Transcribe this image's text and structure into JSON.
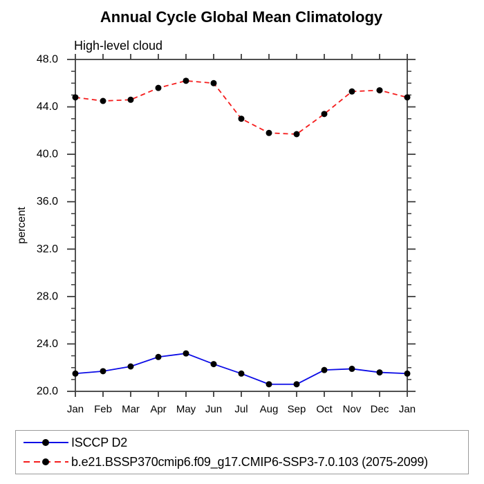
{
  "chart_data": {
    "type": "line",
    "title": "Annual Cycle Global Mean Climatology",
    "subtitle": "High-level cloud",
    "ylabel": "percent",
    "x_tick_labels": [
      "Jan",
      "Feb",
      "Mar",
      "Apr",
      "May",
      "Jun",
      "Jul",
      "Aug",
      "Sep",
      "Oct",
      "Nov",
      "Dec",
      "Jan"
    ],
    "ylim": [
      20.0,
      48.0
    ],
    "y_major_ticks": [
      20,
      24,
      28,
      32,
      36,
      40,
      44,
      48
    ],
    "y_major_tick_labels": [
      "20.0",
      "24.0",
      "28.0",
      "32.0",
      "36.0",
      "40.0",
      "44.0",
      "48.0"
    ],
    "y_minor_tick_step": 1,
    "grid": false,
    "legend_position": "bottom-left",
    "axis_color": "#3c3c3c",
    "series": [
      {
        "name": "ISCCP D2",
        "line_style": "solid",
        "line_color": "#0b0bец",
        "marker": "circle",
        "marker_color": "#000000",
        "values": [
          21.5,
          21.7,
          22.1,
          22.9,
          23.2,
          22.3,
          21.5,
          20.6,
          20.6,
          21.8,
          21.9,
          21.6,
          21.5
        ]
      },
      {
        "name": "b.e21.BSSP370cmip6.f09_g17.CMIP6-SSP3-7.0.103 (2075-2099)",
        "line_style": "dashed",
        "line_color": "#f51c1c",
        "marker": "circle",
        "marker_color": "#000000",
        "values": [
          44.8,
          44.5,
          44.6,
          45.6,
          46.2,
          46.0,
          43.0,
          41.8,
          41.7,
          43.4,
          45.3,
          45.4,
          44.8
        ]
      }
    ]
  }
}
